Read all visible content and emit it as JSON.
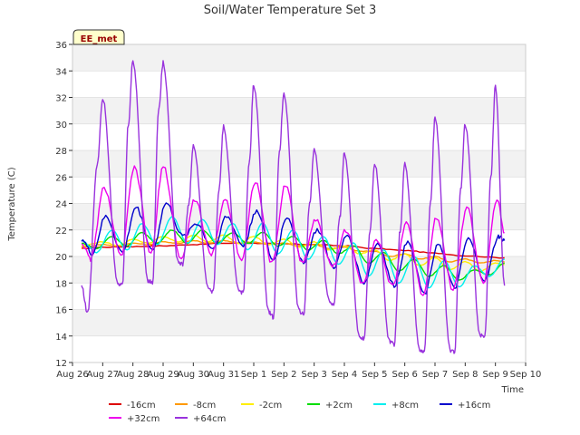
{
  "chart_data": {
    "type": "line",
    "title": "Soil/Water Temperature Set 3",
    "xlabel": "Time",
    "ylabel": "Temperature (C)",
    "badge": "EE_met",
    "ylim": [
      12,
      36
    ],
    "yticks": [
      12,
      14,
      16,
      18,
      20,
      22,
      24,
      26,
      28,
      30,
      32,
      34,
      36
    ],
    "xlim": [
      0,
      15
    ],
    "xticks": [
      "Aug 26",
      "Aug 27",
      "Aug 28",
      "Aug 29",
      "Aug 30",
      "Aug 31",
      "Sep 1",
      "Sep 2",
      "Sep 3",
      "Sep 4",
      "Sep 5",
      "Sep 6",
      "Sep 7",
      "Sep 8",
      "Sep 9",
      "Sep 10"
    ],
    "grid": true,
    "band_color": "#f2f2f2",
    "legend_position": "bottom",
    "series": [
      {
        "name": "-16cm",
        "color": "#dd0000",
        "x": [
          0.3,
          1,
          2,
          3,
          4,
          5,
          6,
          7,
          8,
          9,
          10,
          11,
          12,
          13,
          14.3
        ],
        "y": [
          20.6,
          20.7,
          20.75,
          20.8,
          20.9,
          21.0,
          21.0,
          20.95,
          20.9,
          20.8,
          20.6,
          20.45,
          20.25,
          20.05,
          19.9
        ]
      },
      {
        "name": "-8cm",
        "color": "#ff9900",
        "x": [
          0.3,
          1,
          1.5,
          2,
          2.5,
          3,
          3.5,
          4,
          4.5,
          5,
          5.5,
          6,
          6.5,
          7,
          7.5,
          8,
          8.5,
          9,
          9.5,
          10,
          10.5,
          11,
          11.5,
          12,
          12.5,
          13,
          13.5,
          14,
          14.3
        ],
        "y": [
          20.7,
          20.9,
          20.8,
          21.0,
          20.9,
          21.1,
          21.0,
          21.2,
          21.0,
          21.2,
          21.0,
          21.1,
          20.9,
          21.0,
          20.8,
          20.9,
          20.6,
          20.7,
          20.4,
          20.4,
          20.0,
          20.2,
          19.8,
          20.0,
          19.6,
          19.8,
          19.5,
          19.7,
          19.6
        ]
      },
      {
        "name": "-2cm",
        "color": "#ffee00",
        "x": [
          0.3,
          1,
          1.5,
          2,
          2.5,
          3,
          3.5,
          4,
          4.5,
          5,
          5.5,
          6,
          6.5,
          7,
          7.5,
          8,
          8.5,
          9,
          9.5,
          10,
          10.5,
          11,
          11.5,
          12,
          12.5,
          13,
          13.5,
          14,
          14.3
        ],
        "y": [
          20.8,
          21.1,
          20.8,
          21.3,
          21.0,
          21.5,
          21.1,
          21.6,
          21.1,
          21.6,
          21.0,
          21.5,
          20.9,
          21.3,
          20.7,
          21.1,
          20.5,
          20.8,
          20.2,
          20.5,
          19.7,
          20.2,
          19.3,
          19.9,
          19.0,
          19.6,
          18.9,
          19.5,
          19.4
        ]
      },
      {
        "name": "+2cm",
        "color": "#00dd00",
        "x": [
          0.3,
          0.8,
          1.3,
          1.8,
          2.3,
          2.8,
          3.3,
          3.8,
          4.3,
          4.8,
          5.3,
          5.8,
          6.3,
          6.8,
          7.3,
          7.8,
          8.3,
          8.8,
          9.3,
          9.8,
          10.3,
          10.8,
          11.3,
          11.8,
          12.3,
          12.8,
          13.3,
          13.8,
          14.3
        ],
        "y": [
          21.0,
          20.6,
          21.5,
          20.8,
          21.8,
          21.0,
          22.0,
          21.0,
          22.0,
          21.0,
          21.8,
          21.0,
          21.8,
          20.8,
          21.5,
          20.5,
          21.2,
          20.2,
          20.8,
          19.5,
          20.3,
          18.9,
          19.8,
          18.5,
          19.3,
          18.2,
          19.0,
          18.6,
          19.5
        ]
      },
      {
        "name": "+8cm",
        "color": "#00eeee",
        "x": [
          0.3,
          0.8,
          1.3,
          1.8,
          2.3,
          2.8,
          3.3,
          3.8,
          4.3,
          4.8,
          5.3,
          5.8,
          6.3,
          6.8,
          7.3,
          7.8,
          8.3,
          8.8,
          9.3,
          9.8,
          10.3,
          10.8,
          11.3,
          11.8,
          12.3,
          12.8,
          13.3,
          13.8,
          14.3
        ],
        "y": [
          21.2,
          20.3,
          22.0,
          20.5,
          22.5,
          20.9,
          23.0,
          21.0,
          22.8,
          20.9,
          22.5,
          20.5,
          22.5,
          20.2,
          22.0,
          19.8,
          21.5,
          19.4,
          21.0,
          18.5,
          20.5,
          18.0,
          20.0,
          17.6,
          19.7,
          17.7,
          19.3,
          18.5,
          19.8
        ]
      },
      {
        "name": "+16cm",
        "color": "#0000cc",
        "x": [
          0.3,
          0.65,
          1.1,
          1.65,
          2.1,
          2.65,
          3.1,
          3.65,
          4.1,
          4.65,
          5.1,
          5.65,
          6.1,
          6.65,
          7.1,
          7.65,
          8.1,
          8.65,
          9.1,
          9.65,
          10.1,
          10.65,
          11.1,
          11.65,
          12.1,
          12.65,
          13.1,
          13.65,
          14.1,
          14.3
        ],
        "y": [
          21.3,
          20.2,
          23.0,
          20.3,
          23.7,
          20.5,
          24.0,
          21.5,
          22.5,
          20.6,
          23.0,
          20.8,
          23.5,
          19.7,
          23.0,
          19.6,
          22.0,
          19.2,
          21.6,
          18.0,
          21.0,
          17.8,
          21.2,
          17.2,
          21.0,
          17.6,
          21.3,
          18.2,
          21.5,
          21.2
        ]
      },
      {
        "name": "+32cm",
        "color": "#ee00ee",
        "x": [
          0.3,
          0.6,
          1.05,
          1.6,
          2.05,
          2.6,
          3.0,
          3.6,
          4.05,
          4.6,
          5.05,
          5.6,
          6.05,
          6.6,
          7.05,
          7.6,
          8.05,
          8.6,
          9.05,
          9.6,
          10.05,
          10.6,
          11.05,
          11.6,
          12.05,
          12.6,
          13.05,
          13.6,
          14.05,
          14.3
        ],
        "y": [
          21.0,
          19.8,
          25.2,
          20.0,
          26.7,
          20.2,
          26.8,
          19.8,
          24.3,
          20.1,
          24.3,
          19.8,
          25.7,
          19.5,
          25.4,
          19.5,
          22.8,
          19.2,
          22.0,
          18.0,
          21.3,
          17.7,
          22.6,
          17.1,
          23.0,
          17.5,
          23.7,
          18.0,
          24.3,
          21.8
        ]
      },
      {
        "name": "+64cm",
        "color": "#9933dd",
        "x": [
          0.3,
          0.5,
          0.82,
          1.0,
          1.5,
          1.65,
          1.85,
          2.0,
          2.5,
          2.65,
          2.85,
          3.0,
          3.5,
          3.65,
          3.85,
          4.0,
          4.5,
          4.65,
          4.85,
          5.0,
          5.5,
          5.65,
          5.85,
          6.0,
          6.5,
          6.65,
          6.85,
          7.0,
          7.5,
          7.65,
          7.85,
          8.0,
          8.5,
          8.65,
          8.85,
          9.0,
          9.5,
          9.65,
          9.85,
          10.0,
          10.5,
          10.65,
          10.85,
          11.0,
          11.5,
          11.65,
          11.85,
          12.0,
          12.5,
          12.65,
          12.85,
          13.0,
          13.5,
          13.65,
          13.85,
          14.0,
          14.3
        ],
        "y": [
          17.8,
          15.7,
          27.0,
          32.0,
          18.0,
          17.8,
          30.0,
          34.8,
          18.2,
          18.0,
          31.0,
          34.6,
          19.6,
          19.4,
          24.0,
          28.4,
          17.6,
          17.3,
          25.0,
          29.8,
          17.5,
          17.2,
          27.0,
          33.0,
          15.8,
          15.4,
          28.0,
          32.3,
          15.9,
          15.6,
          24.0,
          28.0,
          16.6,
          16.3,
          23.0,
          27.8,
          14.0,
          13.8,
          22.0,
          27.0,
          13.6,
          13.4,
          22.0,
          27.0,
          12.9,
          12.8,
          24.0,
          30.5,
          12.9,
          12.8,
          25.0,
          30.0,
          14.0,
          13.9,
          26.0,
          32.8,
          17.8
        ]
      }
    ]
  }
}
